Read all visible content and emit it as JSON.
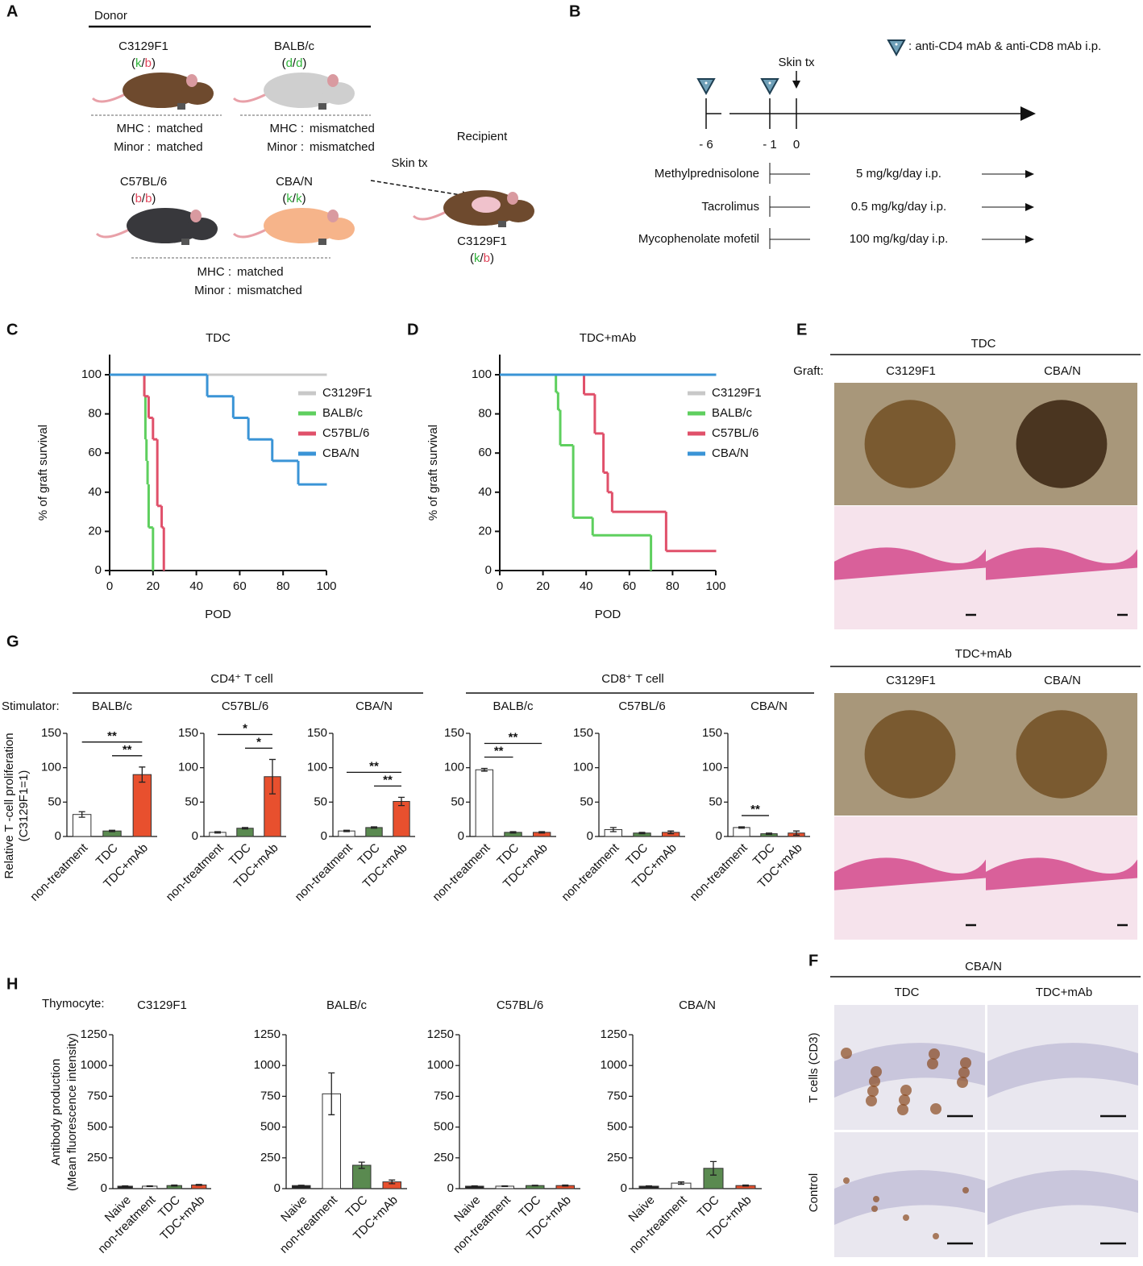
{
  "panel_labels": [
    "A",
    "B",
    "C",
    "D",
    "E",
    "F",
    "G",
    "H"
  ],
  "panel_a": {
    "donor_title": "Donor",
    "recipient_title": "Recipient",
    "arrow_label": "Skin tx",
    "allele_colors": {
      "k": "#2fb33a",
      "d": "#2fb33a",
      "b": "#e0445a"
    },
    "donors": [
      {
        "name": "C3129F1",
        "haplotype": "(k/b)",
        "color": "#6e4a2e"
      },
      {
        "name": "BALB/c",
        "haplotype": "(d/d)",
        "color": "#cfcfcf"
      },
      {
        "name": "C57BL/6",
        "haplotype": "(b/b)",
        "color": "#38383c"
      },
      {
        "name": "CBA/N",
        "haplotype": "(k/k)",
        "color": "#f6b48a"
      }
    ],
    "recipient": {
      "name": "C3129F1",
      "haplotype": "(k/b)",
      "color": "#6e4a2e"
    },
    "match_rows": [
      [
        {
          "label": "MHC :",
          "value": "matched",
          "color": "#111111"
        },
        {
          "label": "Minor :",
          "value": "matched",
          "color": "#111111"
        }
      ],
      [
        {
          "label": "MHC :",
          "value": "mismatched",
          "color": "#d6202a"
        },
        {
          "label": "Minor :",
          "value": "mismatched",
          "color": "#d6202a"
        }
      ],
      [
        {
          "label": "MHC :",
          "value": "matched",
          "color": "#111111"
        },
        {
          "label": "Minor :",
          "value": "mismatched",
          "color": "#d6202a"
        }
      ]
    ]
  },
  "panel_b": {
    "legend": ": anti-CD4 mAb & anti-CD8 mAb i.p.",
    "skin_tx": "Skin tx",
    "days": [
      "- 6",
      "- 1",
      "0"
    ],
    "drugs": [
      {
        "name": "Methylprednisolone",
        "dose": "5 mg/kg/day i.p."
      },
      {
        "name": "Tacrolimus",
        "dose": "0.5 mg/kg/day i.p."
      },
      {
        "name": "Mycophenolate mofetil",
        "dose": "100 mg/kg/day  i.p."
      }
    ]
  },
  "panel_e": {
    "titles": [
      "TDC",
      "TDC+mAb"
    ],
    "graft_label": "Graft:",
    "columns": [
      "C3129F1",
      "CBA/N"
    ]
  },
  "panel_f": {
    "title": "CBA/N",
    "columns": [
      "TDC",
      "TDC+mAb"
    ],
    "rows": [
      "T cells (CD3)",
      "Control"
    ]
  },
  "panel_g": {
    "groups": [
      "CD4⁺ T cell",
      "CD8⁺ T cell"
    ],
    "row_label": "Stimulator:",
    "y_label": [
      "Relative T -cell proliferation",
      "(C3129F1=1)"
    ]
  },
  "panel_h": {
    "row_label": "Thymocyte:",
    "y_label": [
      "Antibody production",
      "(Mean fluorescence intensity)"
    ]
  },
  "chart_data": [
    {
      "type": "survival",
      "title": "TDC",
      "x_label": "POD",
      "y_label": "% of graft survival",
      "xlim": [
        0,
        100
      ],
      "ylim": [
        0,
        100
      ],
      "xticks": [
        0,
        20,
        40,
        60,
        80,
        100
      ],
      "yticks": [
        0,
        20,
        40,
        60,
        80,
        100
      ],
      "legend": "upper right",
      "series": [
        {
          "name": "C3129F1",
          "color": "#c8c8c8",
          "x": [
            0,
            100
          ],
          "values": [
            100,
            100
          ]
        },
        {
          "name": "BALB/c",
          "color": "#5ecf5e",
          "x": [
            0,
            16,
            16.5,
            17,
            17.5,
            18,
            20
          ],
          "values": [
            100,
            89,
            67,
            56,
            44,
            22,
            0
          ]
        },
        {
          "name": "C57BL/6",
          "color": "#e0506a",
          "x": [
            0,
            16,
            18,
            20,
            22,
            24,
            25
          ],
          "values": [
            100,
            89,
            78,
            67,
            33,
            22,
            0
          ]
        },
        {
          "name": "CBA/N",
          "color": "#3a94d6",
          "x": [
            0,
            45,
            57,
            64,
            75,
            87,
            100
          ],
          "values": [
            100,
            89,
            78,
            67,
            56,
            44,
            44
          ]
        }
      ]
    },
    {
      "type": "survival",
      "title": "TDC+mAb",
      "x_label": "POD",
      "y_label": "% of graft survival",
      "xlim": [
        0,
        100
      ],
      "ylim": [
        0,
        100
      ],
      "xticks": [
        0,
        20,
        40,
        60,
        80,
        100
      ],
      "yticks": [
        0,
        20,
        40,
        60,
        80,
        100
      ],
      "legend": "upper right",
      "series": [
        {
          "name": "C3129F1",
          "color": "#c8c8c8",
          "x": [
            0,
            100
          ],
          "values": [
            100,
            100
          ]
        },
        {
          "name": "BALB/c",
          "color": "#5ecf5e",
          "x": [
            0,
            26,
            27,
            28,
            34,
            43,
            70
          ],
          "values": [
            100,
            91,
            82,
            64,
            27,
            18,
            0
          ]
        },
        {
          "name": "C57BL/6",
          "color": "#e0506a",
          "x": [
            0,
            39,
            44,
            48,
            50,
            52,
            77,
            100
          ],
          "values": [
            100,
            90,
            70,
            50,
            40,
            30,
            10,
            10
          ]
        },
        {
          "name": "CBA/N",
          "color": "#3a94d6",
          "x": [
            0,
            100
          ],
          "values": [
            100,
            100
          ]
        }
      ]
    },
    {
      "type": "bar",
      "title": "BALB/c",
      "categories": [
        "non-treatment",
        "TDC",
        "TDC+mAb"
      ],
      "colors": [
        "#ffffff",
        "#5a8a50",
        "#e8502e"
      ],
      "values": [
        32,
        8,
        90
      ],
      "errors": [
        4,
        1,
        11
      ],
      "ylim": [
        0,
        150
      ],
      "yticks": [
        0,
        50,
        100,
        150
      ],
      "annotations": [
        {
          "text": "**",
          "between": [
            0,
            2
          ]
        },
        {
          "text": "**",
          "between": [
            1,
            2
          ]
        }
      ]
    },
    {
      "type": "bar",
      "title": "C57BL/6",
      "categories": [
        "non-treatment",
        "TDC",
        "TDC+mAb"
      ],
      "colors": [
        "#ffffff",
        "#5a8a50",
        "#e8502e"
      ],
      "values": [
        6,
        12,
        87
      ],
      "errors": [
        1,
        1,
        25
      ],
      "ylim": [
        0,
        150
      ],
      "yticks": [
        0,
        50,
        100,
        150
      ],
      "annotations": [
        {
          "text": "*",
          "between": [
            0,
            2
          ]
        },
        {
          "text": "*",
          "between": [
            1,
            2
          ]
        }
      ]
    },
    {
      "type": "bar",
      "title": "CBA/N",
      "categories": [
        "non-treatment",
        "TDC",
        "TDC+mAb"
      ],
      "colors": [
        "#ffffff",
        "#5a8a50",
        "#e8502e"
      ],
      "values": [
        8,
        13,
        51
      ],
      "errors": [
        1,
        1,
        6
      ],
      "ylim": [
        0,
        150
      ],
      "yticks": [
        0,
        50,
        100,
        150
      ],
      "annotations": [
        {
          "text": "**",
          "between": [
            0,
            2
          ]
        },
        {
          "text": "**",
          "between": [
            1,
            2
          ]
        }
      ]
    },
    {
      "type": "bar",
      "title": "BALB/c",
      "categories": [
        "non-treatment",
        "TDC",
        "TDC+mAb"
      ],
      "colors": [
        "#ffffff",
        "#5a8a50",
        "#e8502e"
      ],
      "values": [
        97,
        6,
        6
      ],
      "errors": [
        2,
        1,
        1
      ],
      "ylim": [
        0,
        150
      ],
      "yticks": [
        0,
        50,
        100,
        150
      ],
      "annotations": [
        {
          "text": "**",
          "between": [
            0,
            2
          ]
        },
        {
          "text": "**",
          "between": [
            0,
            1
          ]
        }
      ]
    },
    {
      "type": "bar",
      "title": "C57BL/6",
      "categories": [
        "non-treatment",
        "TDC",
        "TDC+mAb"
      ],
      "colors": [
        "#ffffff",
        "#5a8a50",
        "#e8502e"
      ],
      "values": [
        10,
        5,
        6
      ],
      "errors": [
        3,
        1,
        2
      ],
      "ylim": [
        0,
        150
      ],
      "yticks": [
        0,
        50,
        100,
        150
      ],
      "annotations": []
    },
    {
      "type": "bar",
      "title": "CBA/N",
      "categories": [
        "non-treatment",
        "TDC",
        "TDC+mAb"
      ],
      "colors": [
        "#ffffff",
        "#5a8a50",
        "#e8502e"
      ],
      "values": [
        13,
        4,
        5
      ],
      "errors": [
        1,
        1,
        3
      ],
      "ylim": [
        0,
        150
      ],
      "yticks": [
        0,
        50,
        100,
        150
      ],
      "annotations": [
        {
          "text": "**",
          "between": [
            0,
            1
          ]
        }
      ]
    },
    {
      "type": "bar",
      "title": "C3129F1",
      "categories": [
        "Naive",
        "non-treatment",
        "TDC",
        "TDC+mAb"
      ],
      "colors": [
        "#222222",
        "#ffffff",
        "#5a8a50",
        "#e8502e"
      ],
      "values": [
        20,
        20,
        25,
        30
      ],
      "errors": [
        3,
        3,
        4,
        4
      ],
      "ylim": [
        0,
        1250
      ],
      "yticks": [
        0,
        250,
        500,
        750,
        1000,
        1250
      ],
      "annotations": []
    },
    {
      "type": "bar",
      "title": "BALB/c",
      "categories": [
        "Naive",
        "non-treatment",
        "TDC",
        "TDC+mAb"
      ],
      "colors": [
        "#222222",
        "#ffffff",
        "#5a8a50",
        "#e8502e"
      ],
      "values": [
        25,
        770,
        190,
        55
      ],
      "errors": [
        3,
        170,
        25,
        15
      ],
      "ylim": [
        0,
        1250
      ],
      "yticks": [
        0,
        250,
        500,
        750,
        1000,
        1250
      ],
      "annotations": []
    },
    {
      "type": "bar",
      "title": "C57BL/6",
      "categories": [
        "Naive",
        "non-treatment",
        "TDC",
        "TDC+mAb"
      ],
      "colors": [
        "#222222",
        "#ffffff",
        "#5a8a50",
        "#e8502e"
      ],
      "values": [
        20,
        20,
        25,
        25
      ],
      "errors": [
        3,
        3,
        3,
        4
      ],
      "ylim": [
        0,
        1250
      ],
      "yticks": [
        0,
        250,
        500,
        750,
        1000,
        1250
      ],
      "annotations": []
    },
    {
      "type": "bar",
      "title": "CBA/N",
      "categories": [
        "Naive",
        "non-treatment",
        "TDC",
        "TDC+mAb"
      ],
      "colors": [
        "#222222",
        "#ffffff",
        "#5a8a50",
        "#e8502e"
      ],
      "values": [
        20,
        45,
        165,
        25
      ],
      "errors": [
        3,
        10,
        55,
        4
      ],
      "ylim": [
        0,
        1250
      ],
      "yticks": [
        0,
        250,
        500,
        750,
        1000,
        1250
      ],
      "annotations": []
    }
  ]
}
